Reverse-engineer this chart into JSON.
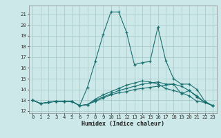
{
  "xlabel": "Humidex (Indice chaleur)",
  "bg_color": "#cce8e8",
  "grid_color": "#aacccc",
  "line_color": "#1a7070",
  "xlim": [
    -0.5,
    23.5
  ],
  "ylim": [
    11.8,
    21.8
  ],
  "xticks": [
    0,
    1,
    2,
    3,
    4,
    5,
    6,
    7,
    8,
    9,
    10,
    11,
    12,
    13,
    14,
    15,
    16,
    17,
    18,
    19,
    20,
    21,
    22,
    23
  ],
  "yticks": [
    12,
    13,
    14,
    15,
    16,
    17,
    18,
    19,
    20,
    21
  ],
  "series": [
    [
      13.0,
      12.7,
      12.8,
      12.9,
      12.9,
      12.9,
      12.5,
      14.2,
      16.6,
      19.1,
      21.2,
      21.2,
      19.3,
      16.3,
      16.5,
      16.6,
      19.8,
      16.7,
      15.0,
      14.5,
      14.5,
      14.0,
      12.9,
      12.5
    ],
    [
      13.0,
      12.7,
      12.8,
      12.9,
      12.9,
      12.9,
      12.5,
      12.6,
      12.9,
      13.2,
      13.5,
      13.7,
      13.8,
      14.0,
      14.1,
      14.2,
      14.3,
      14.4,
      14.5,
      13.6,
      13.9,
      13.3,
      12.8,
      12.5
    ],
    [
      13.0,
      12.7,
      12.8,
      12.9,
      12.9,
      12.9,
      12.5,
      12.6,
      13.0,
      13.3,
      13.6,
      13.9,
      14.1,
      14.3,
      14.5,
      14.6,
      14.7,
      14.5,
      14.5,
      14.3,
      13.9,
      13.4,
      12.8,
      12.5
    ],
    [
      13.0,
      12.7,
      12.8,
      12.9,
      12.9,
      12.9,
      12.5,
      12.6,
      13.1,
      13.5,
      13.8,
      14.1,
      14.4,
      14.6,
      14.8,
      14.7,
      14.5,
      14.1,
      13.9,
      13.7,
      13.4,
      12.9,
      12.8,
      12.5
    ]
  ]
}
